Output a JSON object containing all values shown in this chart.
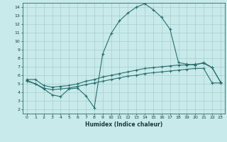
{
  "xlabel": "Humidex (Indice chaleur)",
  "ylabel": "",
  "bg_color": "#c8eaea",
  "line_color": "#2a7070",
  "grid_color": "#a8cccc",
  "xlim": [
    -0.5,
    23.5
  ],
  "ylim": [
    1.5,
    14.5
  ],
  "xticks": [
    0,
    1,
    2,
    3,
    4,
    5,
    6,
    7,
    8,
    9,
    10,
    11,
    12,
    13,
    14,
    15,
    16,
    17,
    18,
    19,
    20,
    21,
    22,
    23
  ],
  "yticks": [
    2,
    3,
    4,
    5,
    6,
    7,
    8,
    9,
    10,
    11,
    12,
    13,
    14
  ],
  "line1_x": [
    0,
    1,
    2,
    3,
    4,
    5,
    6,
    7,
    8,
    9,
    10,
    11,
    12,
    13,
    14,
    15,
    16,
    17,
    18,
    19,
    20,
    21,
    22,
    23
  ],
  "line1_y": [
    5.4,
    5.0,
    4.4,
    3.7,
    3.5,
    4.4,
    4.5,
    3.6,
    2.2,
    8.5,
    10.9,
    12.4,
    13.3,
    14.0,
    14.4,
    13.7,
    12.8,
    11.4,
    7.5,
    7.3,
    7.2,
    7.5,
    6.9,
    5.2
  ],
  "line2_x": [
    0,
    1,
    2,
    3,
    4,
    5,
    6,
    7,
    8,
    9,
    10,
    11,
    12,
    13,
    14,
    15,
    16,
    17,
    18,
    19,
    20,
    21,
    22,
    23
  ],
  "line2_y": [
    5.5,
    5.5,
    4.8,
    4.6,
    4.7,
    4.8,
    5.0,
    5.3,
    5.5,
    5.8,
    6.0,
    6.2,
    6.4,
    6.6,
    6.8,
    6.9,
    7.0,
    7.1,
    7.2,
    7.2,
    7.3,
    7.4,
    6.9,
    5.2
  ],
  "line3_x": [
    0,
    1,
    2,
    3,
    4,
    5,
    6,
    7,
    8,
    9,
    10,
    11,
    12,
    13,
    14,
    15,
    16,
    17,
    18,
    19,
    20,
    21,
    22,
    23
  ],
  "line3_y": [
    5.3,
    5.0,
    4.5,
    4.3,
    4.4,
    4.5,
    4.7,
    4.9,
    5.1,
    5.3,
    5.5,
    5.7,
    5.9,
    6.0,
    6.2,
    6.3,
    6.4,
    6.5,
    6.6,
    6.7,
    6.8,
    6.8,
    5.1,
    5.1
  ]
}
